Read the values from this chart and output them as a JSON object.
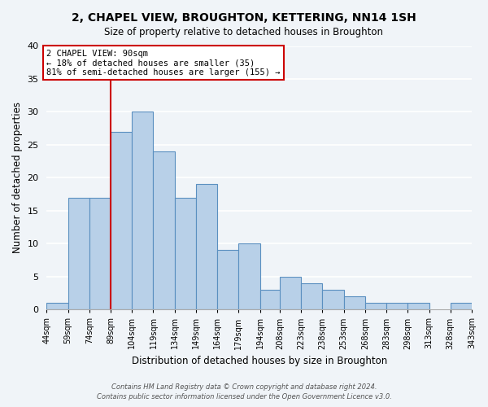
{
  "title": "2, CHAPEL VIEW, BROUGHTON, KETTERING, NN14 1SH",
  "subtitle": "Size of property relative to detached houses in Broughton",
  "xlabel": "Distribution of detached houses by size in Broughton",
  "ylabel": "Number of detached properties",
  "footer_line1": "Contains HM Land Registry data © Crown copyright and database right 2024.",
  "footer_line2": "Contains public sector information licensed under the Open Government Licence v3.0.",
  "bin_edges": [
    44,
    59,
    74,
    89,
    104,
    119,
    134,
    149,
    164,
    179,
    194,
    208,
    223,
    238,
    253,
    268,
    283,
    298,
    313,
    328,
    343
  ],
  "bin_labels": [
    "44sqm",
    "59sqm",
    "74sqm",
    "89sqm",
    "104sqm",
    "119sqm",
    "134sqm",
    "149sqm",
    "164sqm",
    "179sqm",
    "194sqm",
    "208sqm",
    "223sqm",
    "238sqm",
    "253sqm",
    "268sqm",
    "283sqm",
    "298sqm",
    "313sqm",
    "328sqm",
    "343sqm"
  ],
  "bar_heights": [
    1,
    17,
    17,
    27,
    30,
    24,
    17,
    19,
    9,
    10,
    3,
    5,
    4,
    3,
    2,
    1,
    1,
    1,
    0,
    1
  ],
  "bar_color": "#b8d0e8",
  "bar_edge_color": "#5a8fc0",
  "background_color": "#f0f4f8",
  "grid_color": "#ffffff",
  "vline_x": 89,
  "vline_color": "#cc0000",
  "annotation_line1": "2 CHAPEL VIEW: 90sqm",
  "annotation_line2": "← 18% of detached houses are smaller (35)",
  "annotation_line3": "81% of semi-detached houses are larger (155) →",
  "annotation_box_color": "#ffffff",
  "annotation_box_edge_color": "#cc0000",
  "ylim": [
    0,
    40
  ],
  "yticks": [
    0,
    5,
    10,
    15,
    20,
    25,
    30,
    35,
    40
  ]
}
